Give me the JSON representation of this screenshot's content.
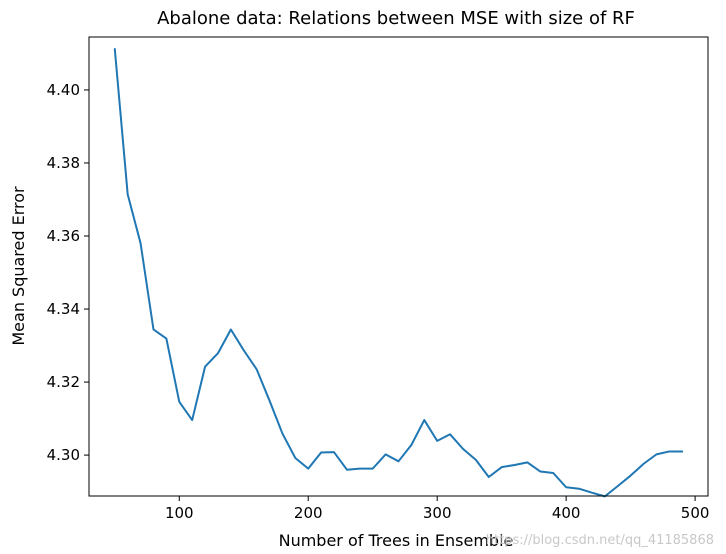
{
  "chart_data": {
    "type": "line",
    "title": "Abalone data: Relations between MSE with size of RF",
    "xlabel": "Number of Trees in Ensemble",
    "ylabel": "Mean Squared Error",
    "xlim": [
      30,
      510
    ],
    "ylim": [
      4.2888,
      4.4145
    ],
    "xticks": [
      100,
      200,
      300,
      400,
      500
    ],
    "yticks": [
      4.3,
      4.32,
      4.34,
      4.36,
      4.38,
      4.4
    ],
    "xtick_labels": [
      "100",
      "200",
      "300",
      "400",
      "500"
    ],
    "ytick_labels": [
      "4.30",
      "4.32",
      "4.34",
      "4.36",
      "4.38",
      "4.40"
    ],
    "grid": false,
    "series": [
      {
        "color": "#1f77b4",
        "x": [
          50,
          60,
          70,
          80,
          90,
          100,
          110,
          120,
          130,
          140,
          150,
          160,
          170,
          180,
          190,
          200,
          210,
          220,
          230,
          240,
          250,
          260,
          270,
          280,
          290,
          300,
          310,
          320,
          330,
          340,
          350,
          360,
          370,
          380,
          390,
          400,
          410,
          420,
          430,
          440,
          450,
          460,
          470,
          480,
          490
        ],
        "y": [
          4.4112,
          4.3714,
          4.358,
          4.3344,
          4.3319,
          4.3146,
          4.3096,
          4.3242,
          4.3279,
          4.3344,
          4.3287,
          4.3235,
          4.3149,
          4.3059,
          4.2992,
          4.2963,
          4.3007,
          4.3008,
          4.296,
          4.2963,
          4.2963,
          4.3002,
          4.2983,
          4.3028,
          4.3096,
          4.3039,
          4.3057,
          4.3017,
          4.2987,
          4.294,
          4.2967,
          4.2973,
          4.298,
          4.2955,
          4.2951,
          4.2912,
          4.2908,
          4.2897,
          4.2887,
          4.2915,
          4.2944,
          4.2976,
          4.3002,
          4.301,
          4.301
        ]
      }
    ]
  },
  "watermark": "https://blog.csdn.net/qq_41185868"
}
